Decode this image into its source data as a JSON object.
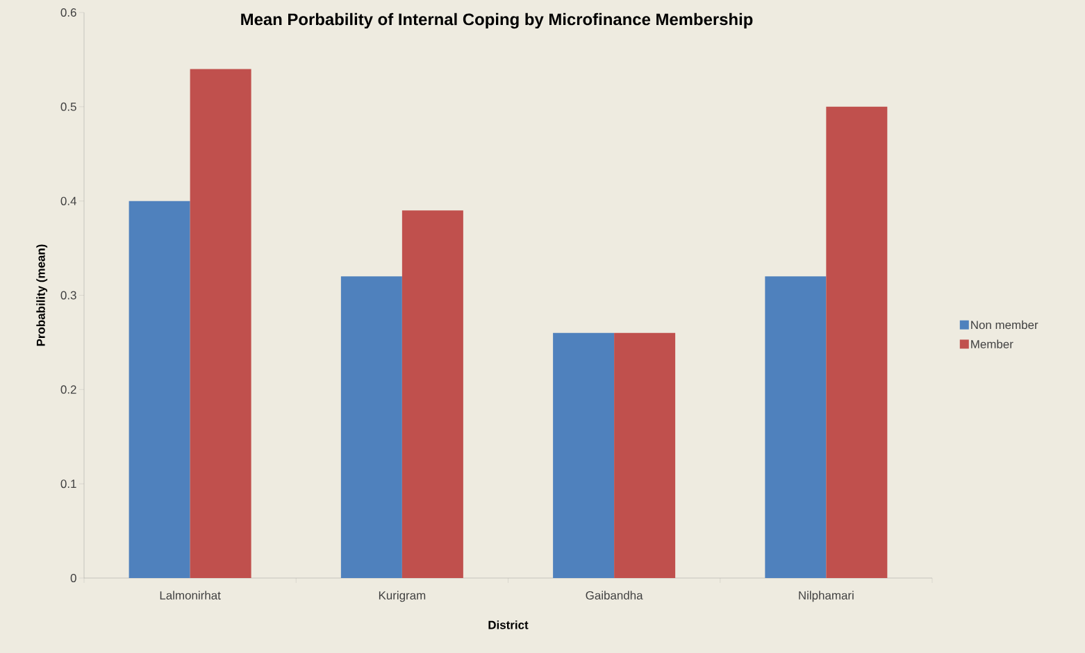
{
  "chart_data": {
    "type": "bar",
    "title": "Mean Porbability of Internal Coping by Microfinance Membership",
    "xlabel": "District",
    "ylabel": "Probability (mean)",
    "categories": [
      "Lalmonirhat",
      "Kurigram",
      "Gaibandha",
      "Nilphamari"
    ],
    "series": [
      {
        "name": "Non member",
        "color": "#4f81bd",
        "values": [
          0.4,
          0.32,
          0.26,
          0.32
        ]
      },
      {
        "name": "Member",
        "color": "#c0504d",
        "values": [
          0.54,
          0.39,
          0.26,
          0.5
        ]
      }
    ],
    "ylim": [
      0,
      0.6
    ],
    "yticks": [
      0,
      0.1,
      0.2,
      0.3,
      0.4,
      0.5,
      0.6
    ],
    "grid": false,
    "legend": "right"
  }
}
